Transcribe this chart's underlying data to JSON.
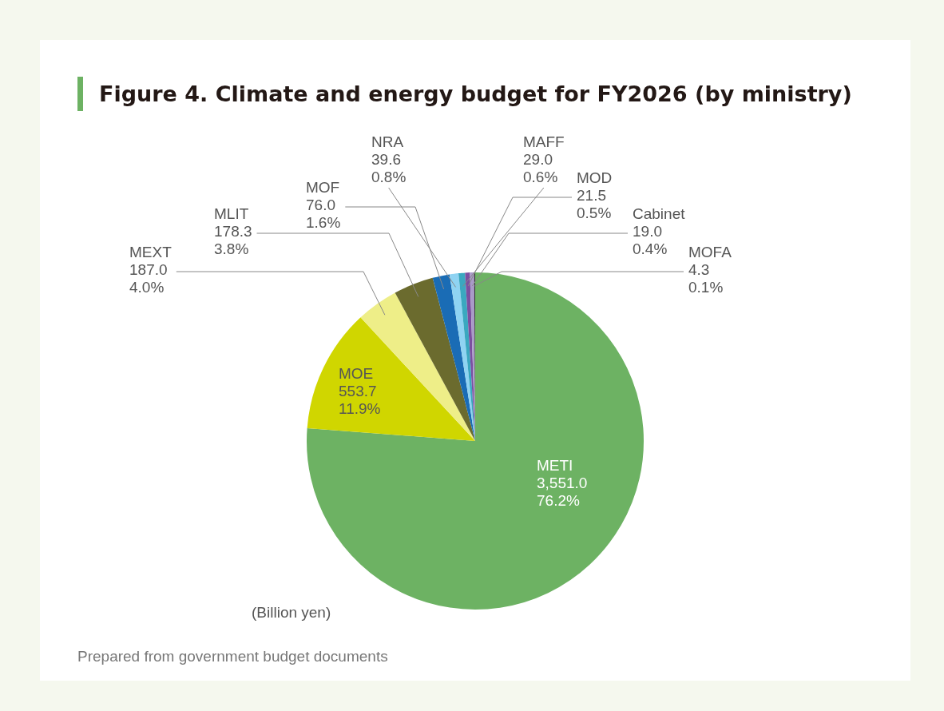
{
  "chart_data": {
    "type": "pie",
    "title": "Figure 4. Climate and energy budget for FY2026 (by ministry)",
    "categories": [
      "METI",
      "MOE",
      "MEXT",
      "MLIT",
      "MOF",
      "NRA",
      "MAFF",
      "MOD",
      "Cabinet",
      "MOFA"
    ],
    "values": [
      3551.0,
      553.7,
      187.0,
      178.3,
      76.0,
      39.6,
      29.0,
      21.5,
      19.0,
      4.3
    ],
    "value_labels": [
      "3,551.0\n76.2%",
      "553.7\n11.9%",
      "187.0\n4.0%",
      "178.3\n3.8%",
      "76.0\n1.6%",
      "39.6\n0.8%",
      "29.0\n0.6%",
      "21.5\n0.5%",
      "19.0\n0.4%",
      "4.3\n0.1%"
    ],
    "colors": [
      "#6db263",
      "#d0d600",
      "#eeee88",
      "#6b6b2e",
      "#1a6cb5",
      "#8fd3f2",
      "#3aa8c0",
      "#7b4fa0",
      "#a99ac8",
      "#333333"
    ],
    "legend": false,
    "annotations": [
      "(Billion yen)",
      "Prepared from government budget documents"
    ]
  }
}
